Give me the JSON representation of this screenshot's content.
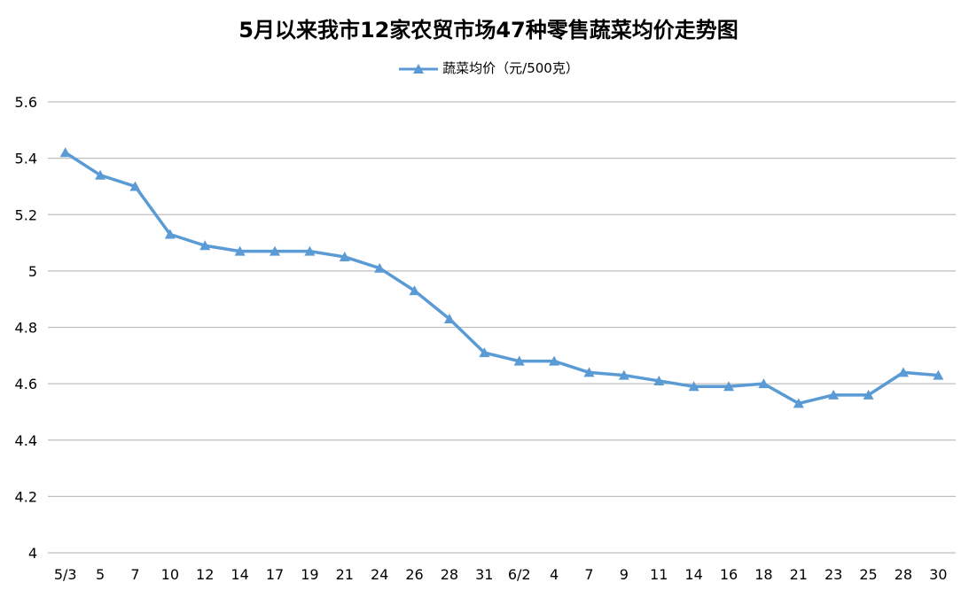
{
  "chart_data": {
    "type": "line",
    "title": "5月以来我市12家农贸市场47种零售蔬菜均价走势图",
    "xlabel": "",
    "ylabel": "",
    "categories": [
      "5/3",
      "5",
      "7",
      "10",
      "12",
      "14",
      "17",
      "19",
      "21",
      "24",
      "26",
      "28",
      "31",
      "6/2",
      "4",
      "7",
      "9",
      "11",
      "14",
      "16",
      "18",
      "21",
      "23",
      "25",
      "28",
      "30"
    ],
    "series": [
      {
        "name": "蔬菜均价（元/500克）",
        "values": [
          5.42,
          5.34,
          5.3,
          5.13,
          5.09,
          5.07,
          5.07,
          5.07,
          5.05,
          5.01,
          4.93,
          4.83,
          4.71,
          4.68,
          4.68,
          4.64,
          4.63,
          4.61,
          4.59,
          4.59,
          4.6,
          4.53,
          4.56,
          4.56,
          4.64,
          4.63
        ],
        "color": "#5b9bd5",
        "marker": "triangle"
      }
    ],
    "ylim": [
      4,
      5.6
    ],
    "yticks": [
      "4",
      "4.2",
      "4.4",
      "4.6",
      "4.8",
      "5",
      "5.2",
      "5.4",
      "5.6"
    ],
    "grid": true,
    "legend_position": "top"
  }
}
